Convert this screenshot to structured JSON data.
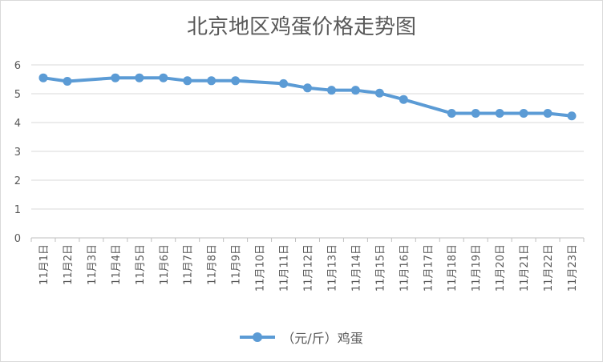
{
  "chart_data": {
    "type": "line",
    "title": "北京地区鸡蛋价格走势图",
    "categories": [
      "11月1日",
      "11月2日",
      "11月3日",
      "11月4日",
      "11月5日",
      "11月6日",
      "11月7日",
      "11月8日",
      "11月9日",
      "11月10日",
      "11月11日",
      "11月12日",
      "11月13日",
      "11月14日",
      "11月15日",
      "11月16日",
      "11月17日",
      "11月18日",
      "11月19日",
      "11月20日",
      "11月21日",
      "11月22日",
      "11月23日"
    ],
    "series": [
      {
        "name": "（元/斤）鸡蛋",
        "color": "#5b9bd5",
        "values": [
          5.55,
          5.43,
          null,
          5.55,
          5.55,
          5.55,
          5.45,
          5.45,
          5.45,
          null,
          5.35,
          5.2,
          5.12,
          5.12,
          5.02,
          4.8,
          null,
          4.32,
          4.32,
          4.32,
          4.32,
          4.32,
          4.23
        ]
      }
    ],
    "ylim": [
      0,
      6
    ],
    "yticks": [
      0,
      1,
      2,
      3,
      4,
      5,
      6
    ],
    "grid": true,
    "legend": "bottom"
  }
}
